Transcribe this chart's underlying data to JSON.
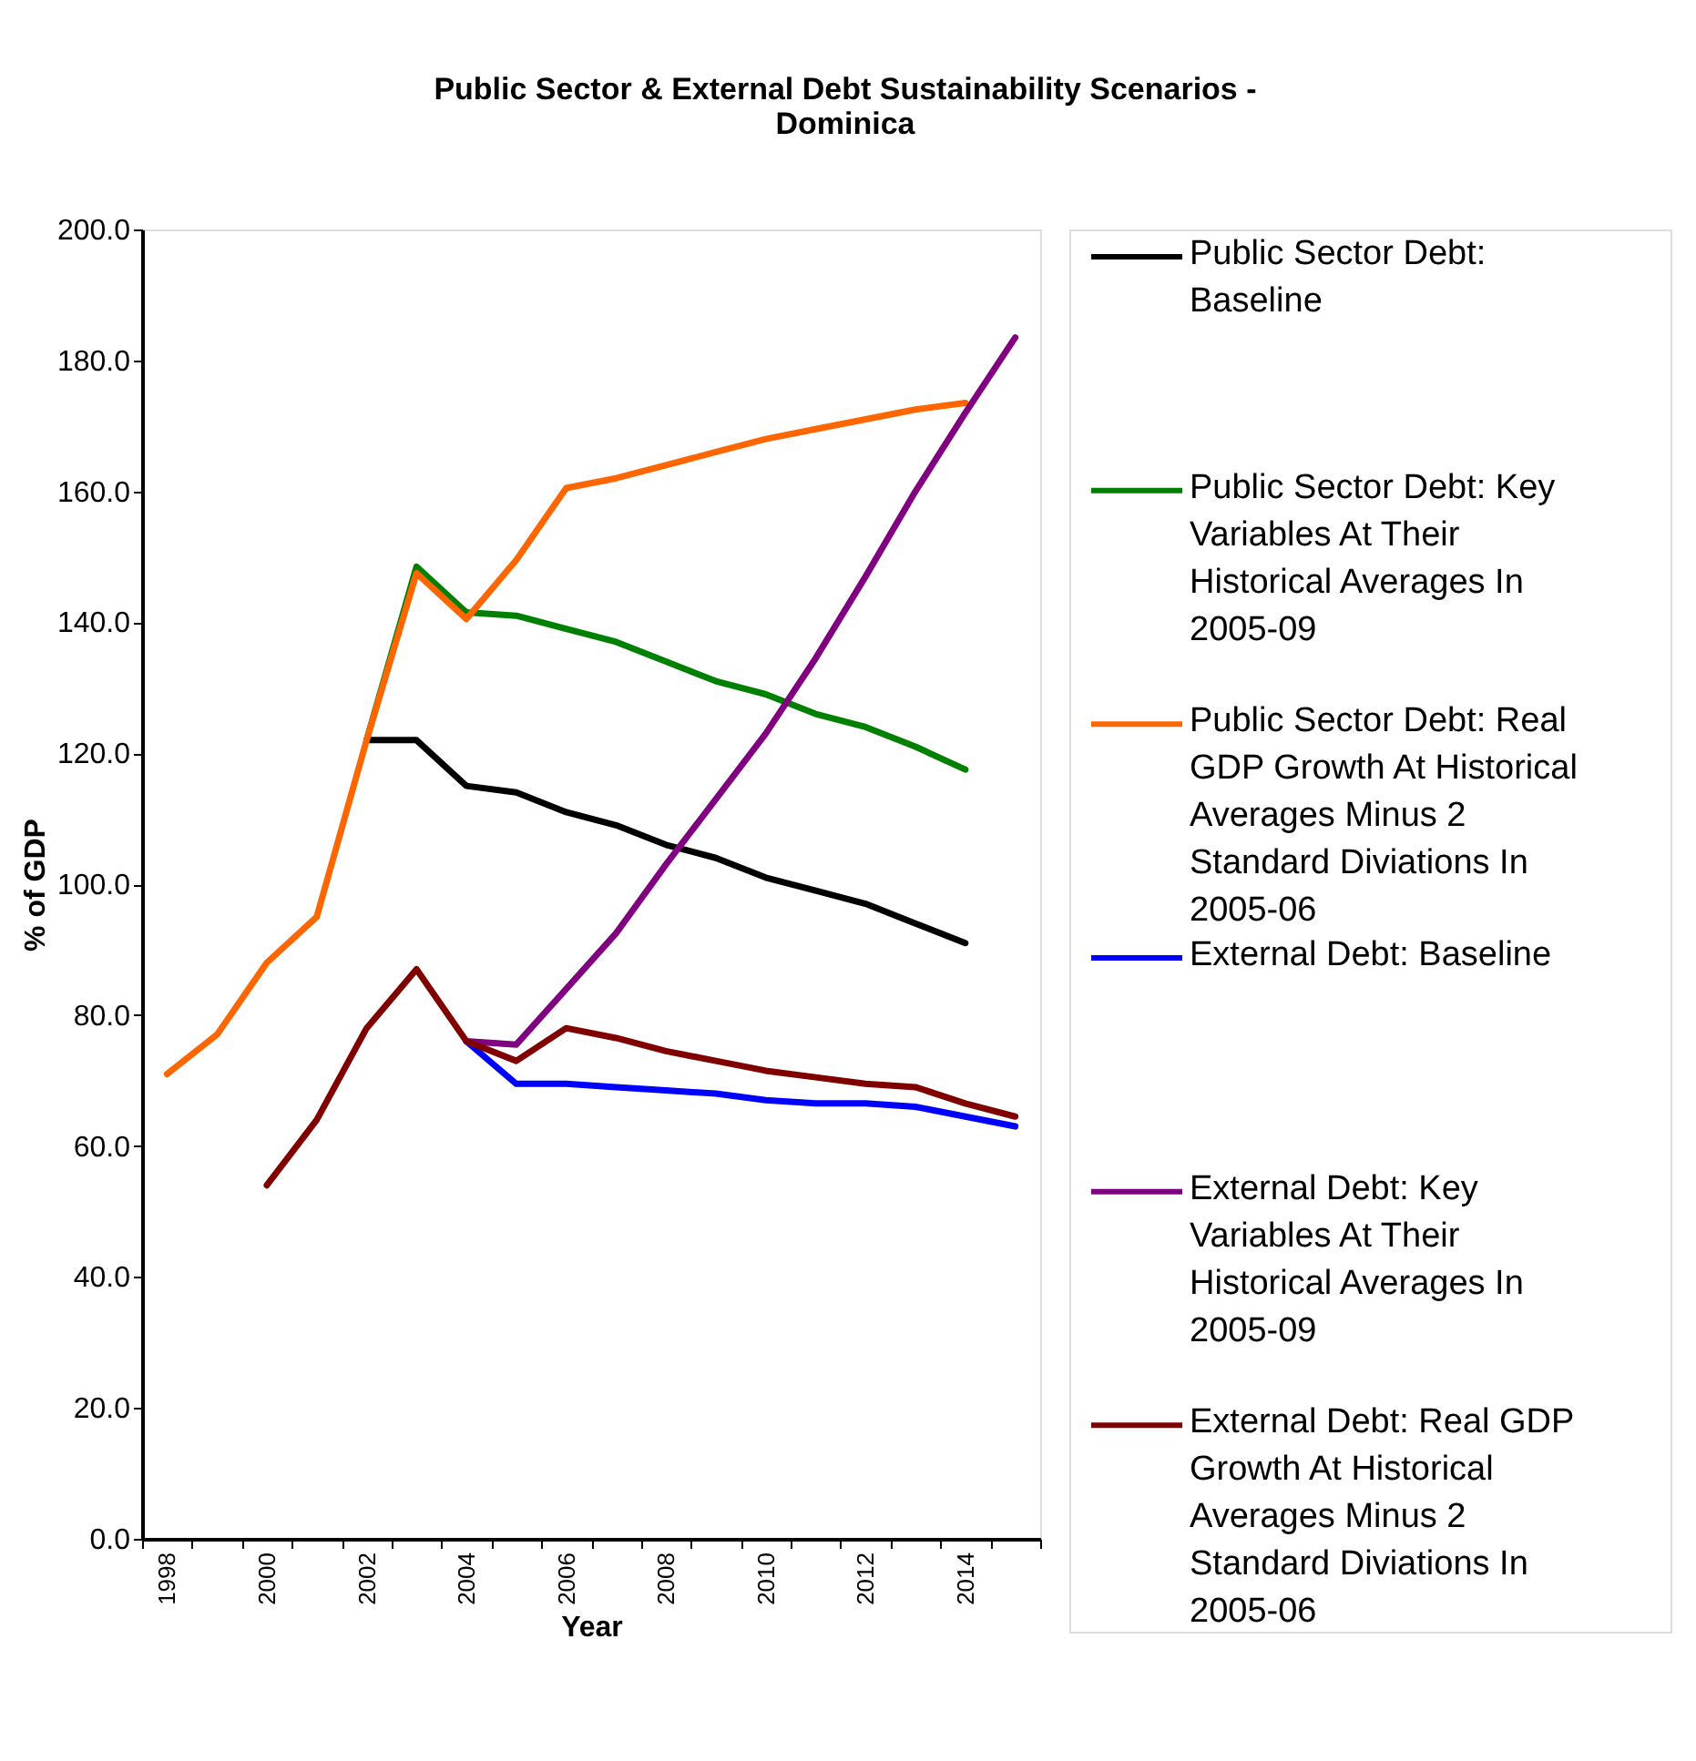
{
  "chart_data": {
    "type": "line",
    "title": "Public Sector & External Debt Sustainability Scenarios - Dominica",
    "xlabel": "Year",
    "ylabel": "% of GDP",
    "categories": [
      "1998",
      null,
      "2000",
      null,
      "2002",
      null,
      "2004",
      null,
      "2006",
      null,
      "2008",
      null,
      "2010",
      null,
      "2012",
      null,
      "2014",
      null
    ],
    "ylim": [
      0,
      200
    ],
    "yticks": [
      {
        "value": 0,
        "label": "0.0"
      },
      {
        "value": 20,
        "label": "20.0"
      },
      {
        "value": 40,
        "label": "40.0"
      },
      {
        "value": 60,
        "label": "60.0"
      },
      {
        "value": 80,
        "label": "80.0"
      },
      {
        "value": 100,
        "label": "100.0"
      },
      {
        "value": 120,
        "label": "120.0"
      },
      {
        "value": 140,
        "label": "140.0"
      },
      {
        "value": 160,
        "label": "160.0"
      },
      {
        "value": 180,
        "label": "180.0"
      },
      {
        "value": 200,
        "label": "200.0"
      }
    ],
    "grid": false,
    "legend": "right",
    "line_style": "solid",
    "series": [
      {
        "name": "Public Sector Debt: Baseline",
        "color": "#000000",
        "values": [
          null,
          null,
          null,
          null,
          122,
          122,
          115,
          114,
          111,
          109,
          106,
          104,
          101,
          99,
          97,
          94,
          91,
          null
        ]
      },
      {
        "name": "Public Sector Debt: Key Variables At Their Historical Averages In 2005-09",
        "color": "#008000",
        "values": [
          null,
          null,
          null,
          null,
          122,
          148.5,
          141.5,
          141,
          139,
          137,
          134,
          131,
          129,
          126,
          124,
          121,
          117.5,
          null
        ]
      },
      {
        "name": "Public Sector Debt: Real GDP Growth At Historical Averages Minus 2 Standard Diviations In 2005-06",
        "color": "#ff6600",
        "values": [
          71,
          77,
          88,
          95,
          122,
          147.5,
          140.5,
          149.5,
          160.5,
          162,
          164,
          166,
          168,
          169.5,
          171,
          172.5,
          173.5,
          null
        ]
      },
      {
        "name": "External Debt: Baseline",
        "color": "#0000ff",
        "values": [
          null,
          null,
          null,
          null,
          null,
          null,
          76,
          69.5,
          69.5,
          69,
          68.5,
          68,
          67,
          66.5,
          66.5,
          66,
          64.5,
          63
        ]
      },
      {
        "name": "External Debt: Key Variables At Their Historical Averages In 2005-09",
        "color": "#800080",
        "values": [
          null,
          null,
          null,
          null,
          null,
          null,
          76,
          75.5,
          84,
          92.5,
          103,
          113,
          123,
          134.5,
          147,
          160,
          172,
          183.5
        ]
      },
      {
        "name": "External Debt: Real GDP Growth At Historical Averages Minus 2 Standard Diviations In 2005-06",
        "color": "#800000",
        "values": [
          null,
          null,
          54,
          64,
          78,
          87,
          76,
          73,
          78,
          76.5,
          74.5,
          73,
          71.5,
          70.5,
          69.5,
          69,
          66.5,
          64.5
        ]
      }
    ]
  }
}
